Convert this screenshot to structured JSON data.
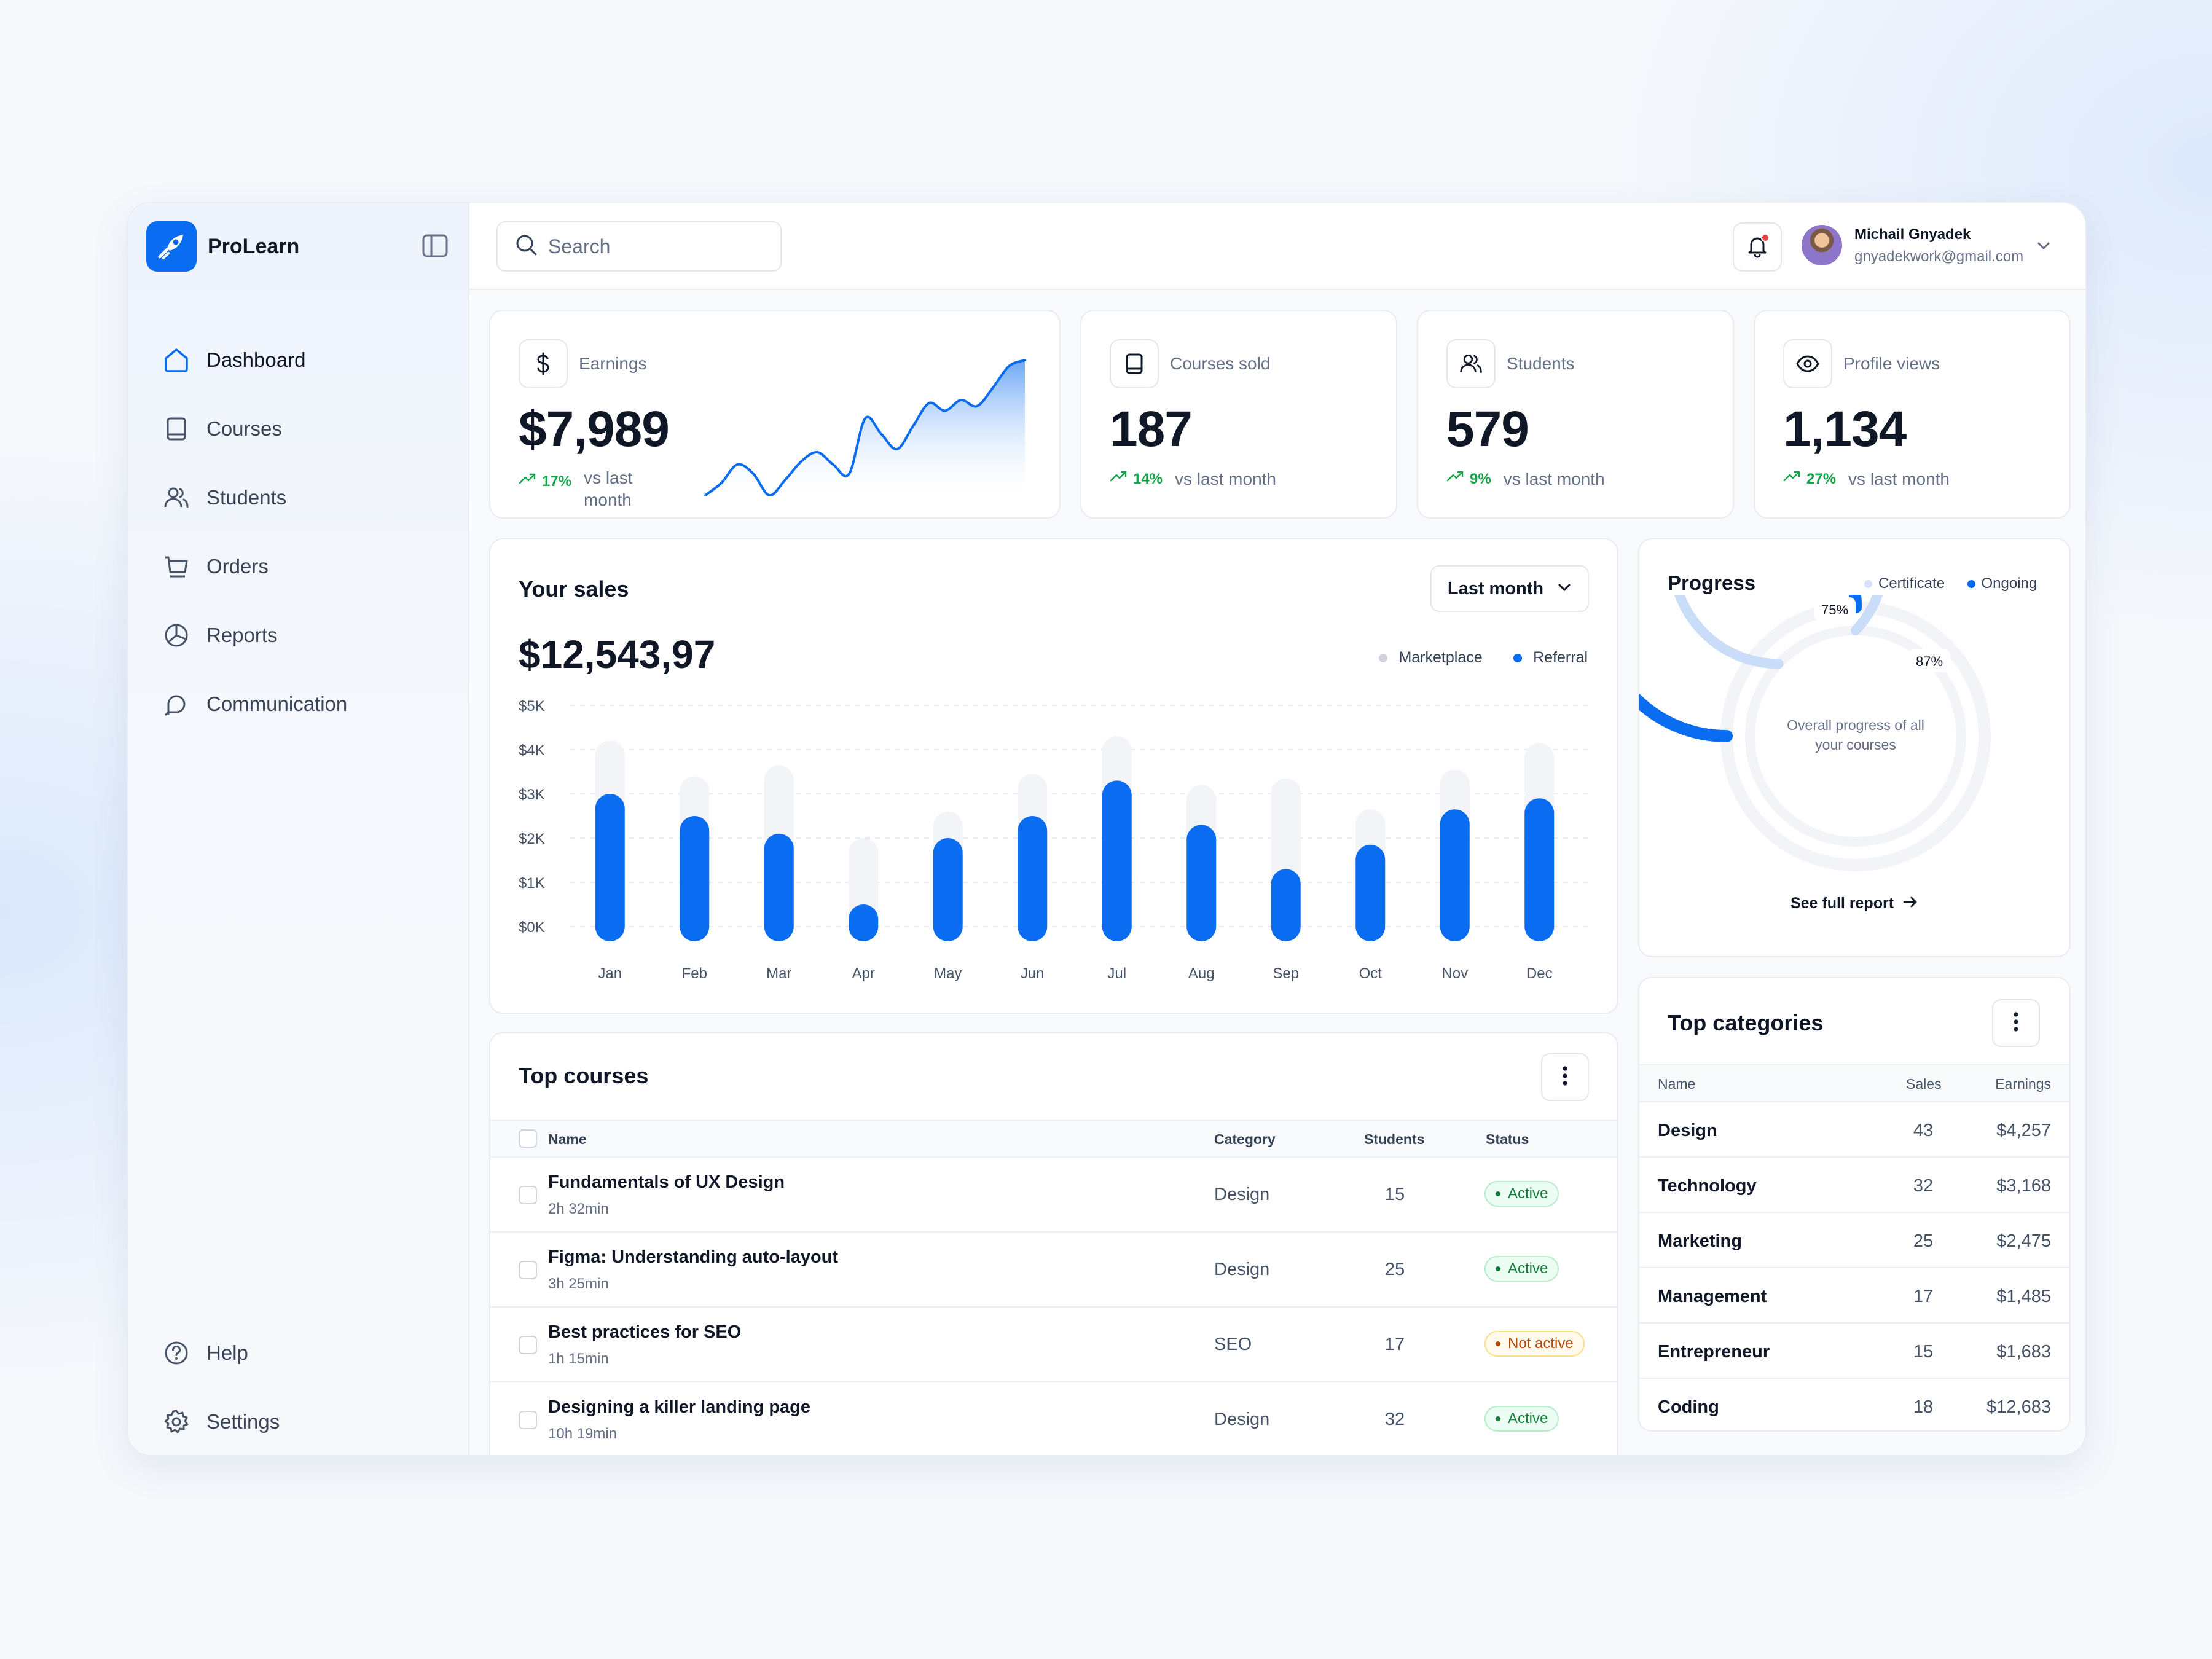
{
  "brand": {
    "name": "ProLearn"
  },
  "sidebar": {
    "items": [
      {
        "label": "Dashboard",
        "icon": "home-icon",
        "active": true
      },
      {
        "label": "Courses",
        "icon": "book-icon"
      },
      {
        "label": "Students",
        "icon": "users-icon"
      },
      {
        "label": "Orders",
        "icon": "cart-icon"
      },
      {
        "label": "Reports",
        "icon": "pie-chart-icon"
      },
      {
        "label": "Communication",
        "icon": "chat-icon"
      }
    ],
    "bottom": [
      {
        "label": "Help",
        "icon": "help-icon"
      },
      {
        "label": "Settings",
        "icon": "gear-icon"
      }
    ]
  },
  "topbar": {
    "search_placeholder": "Search",
    "user": {
      "name": "Michail Gnyadek",
      "email": "gnyadekwork@gmail.com"
    }
  },
  "stats": {
    "earnings": {
      "label": "Earnings",
      "value": "$7,989",
      "pct": "17%",
      "vs": "vs last month",
      "vs_line1": "vs last",
      "vs_line2": "month"
    },
    "courses_sold": {
      "label": "Courses sold",
      "value": "187",
      "pct": "14%",
      "vs": "vs last month"
    },
    "students": {
      "label": "Students",
      "value": "579",
      "pct": "9%",
      "vs": "vs last month"
    },
    "profile_views": {
      "label": "Profile views",
      "value": "1,134",
      "pct": "27%",
      "vs": "vs last month"
    }
  },
  "sales": {
    "title": "Your sales",
    "total": "$12,543,97",
    "period": "Last month",
    "legend": {
      "marketplace": "Marketplace",
      "referral": "Referral"
    }
  },
  "colors": {
    "accent": "#0a6cf0",
    "light_bar": "#f2f4f7",
    "success": "#16a34a",
    "warning": "#b54708"
  },
  "chart_data": [
    {
      "type": "bar",
      "title": "Your sales",
      "categories": [
        "Jan",
        "Feb",
        "Mar",
        "Apr",
        "May",
        "Jun",
        "Jul",
        "Aug",
        "Sep",
        "Oct",
        "Nov",
        "Dec"
      ],
      "y_ticks": [
        "$5K",
        "$4K",
        "$3K",
        "$2K",
        "$1K",
        "$0K"
      ],
      "ylim": [
        0,
        5000
      ],
      "grid": true,
      "legend": "top-right",
      "series": [
        {
          "name": "Marketplace",
          "values": [
            4200,
            3400,
            3650,
            2000,
            2600,
            3450,
            4300,
            3200,
            3350,
            2650,
            3550,
            4150
          ]
        },
        {
          "name": "Referral",
          "values": [
            3000,
            2500,
            2100,
            500,
            2000,
            2500,
            3300,
            2300,
            1300,
            1850,
            2650,
            2900
          ]
        }
      ]
    },
    {
      "type": "line",
      "title": "",
      "x": [
        0,
        1,
        2,
        3,
        4,
        5,
        6,
        7,
        8,
        9,
        10,
        11,
        12,
        13,
        14,
        15,
        16,
        17,
        18,
        19,
        20
      ],
      "y": [
        0,
        8,
        20,
        14,
        0,
        10,
        22,
        28,
        20,
        14,
        50,
        40,
        30,
        45,
        60,
        55,
        62,
        58,
        70,
        84,
        88
      ]
    },
    {
      "type": "pie",
      "title": "Progress",
      "series": [
        {
          "name": "Ongoing",
          "value": 75,
          "label": "75%"
        },
        {
          "name": "Certificate",
          "value": 87,
          "label": "87%"
        }
      ]
    }
  ],
  "progress": {
    "title": "Progress",
    "legend": {
      "certificate": "Certificate",
      "ongoing": "Ongoing"
    },
    "center_text_1": "Overall progress of all",
    "center_text_2": "your courses",
    "outer_label": "75%",
    "inner_label": "87%",
    "outer_pct": 75,
    "inner_pct": 87,
    "link": "See full report"
  },
  "top_courses": {
    "title": "Top courses",
    "columns": {
      "name": "Name",
      "category": "Category",
      "students": "Students",
      "status": "Status"
    },
    "rows": [
      {
        "name": "Fundamentals of UX Design",
        "duration": "2h 32min",
        "category": "Design",
        "students": "15",
        "status": "Active",
        "active": true
      },
      {
        "name": "Figma: Understanding auto-layout",
        "duration": "3h 25min",
        "category": "Design",
        "students": "25",
        "status": "Active",
        "active": true
      },
      {
        "name": "Best practices for SEO",
        "duration": "1h 15min",
        "category": "SEO",
        "students": "17",
        "status": "Not active",
        "active": false
      },
      {
        "name": "Designing a killer landing page",
        "duration": "10h 19min",
        "category": "Design",
        "students": "32",
        "status": "Active",
        "active": true
      }
    ]
  },
  "top_categories": {
    "title": "Top categories",
    "columns": {
      "name": "Name",
      "sales": "Sales",
      "earnings": "Earnings"
    },
    "rows": [
      {
        "name": "Design",
        "sales": "43",
        "earnings": "$4,257"
      },
      {
        "name": "Technology",
        "sales": "32",
        "earnings": "$3,168"
      },
      {
        "name": "Marketing",
        "sales": "25",
        "earnings": "$2,475"
      },
      {
        "name": "Management",
        "sales": "17",
        "earnings": "$1,485"
      },
      {
        "name": "Entrepreneur",
        "sales": "15",
        "earnings": "$1,683"
      },
      {
        "name": "Coding",
        "sales": "18",
        "earnings": "$12,683"
      }
    ]
  }
}
